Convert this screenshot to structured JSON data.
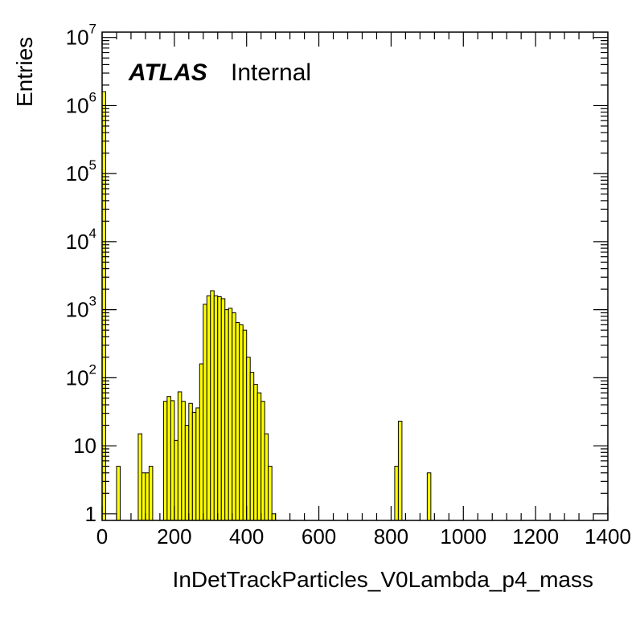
{
  "chart_data": {
    "type": "bar",
    "title": "",
    "xlabel": "InDetTrackParticles_V0Lambda_p4_mass",
    "ylabel": "Entries",
    "label_bold": "ATLAS",
    "label_normal": "Internal",
    "xlim": [
      0,
      1400
    ],
    "ylim": [
      0.8,
      12000000
    ],
    "yscale": "log",
    "bin_width": 10,
    "fill_color": "#ffff00",
    "line_color": "#000000",
    "x_ticks": [
      "0",
      "200",
      "400",
      "600",
      "800",
      "1000",
      "1200",
      "1400"
    ],
    "y_ticks": [
      {
        "base": "1",
        "exp": ""
      },
      {
        "base": "10",
        "exp": ""
      },
      {
        "base": "10",
        "exp": "2"
      },
      {
        "base": "10",
        "exp": "3"
      },
      {
        "base": "10",
        "exp": "4"
      },
      {
        "base": "10",
        "exp": "5"
      },
      {
        "base": "10",
        "exp": "6"
      },
      {
        "base": "10",
        "exp": "7"
      }
    ],
    "bins": [
      {
        "x": 0,
        "y": 1600000
      },
      {
        "x": 40,
        "y": 5
      },
      {
        "x": 100,
        "y": 15
      },
      {
        "x": 110,
        "y": 4
      },
      {
        "x": 120,
        "y": 4
      },
      {
        "x": 130,
        "y": 5
      },
      {
        "x": 170,
        "y": 45
      },
      {
        "x": 180,
        "y": 53
      },
      {
        "x": 190,
        "y": 46
      },
      {
        "x": 200,
        "y": 12
      },
      {
        "x": 210,
        "y": 62
      },
      {
        "x": 220,
        "y": 45
      },
      {
        "x": 230,
        "y": 20
      },
      {
        "x": 240,
        "y": 42
      },
      {
        "x": 250,
        "y": 31
      },
      {
        "x": 260,
        "y": 36
      },
      {
        "x": 270,
        "y": 160
      },
      {
        "x": 280,
        "y": 1200
      },
      {
        "x": 290,
        "y": 1600
      },
      {
        "x": 300,
        "y": 1900
      },
      {
        "x": 310,
        "y": 1600
      },
      {
        "x": 320,
        "y": 1550
      },
      {
        "x": 330,
        "y": 1450
      },
      {
        "x": 340,
        "y": 1000
      },
      {
        "x": 350,
        "y": 1050
      },
      {
        "x": 360,
        "y": 900
      },
      {
        "x": 370,
        "y": 650
      },
      {
        "x": 380,
        "y": 600
      },
      {
        "x": 390,
        "y": 500
      },
      {
        "x": 400,
        "y": 200
      },
      {
        "x": 410,
        "y": 120
      },
      {
        "x": 420,
        "y": 80
      },
      {
        "x": 430,
        "y": 60
      },
      {
        "x": 440,
        "y": 45
      },
      {
        "x": 450,
        "y": 15
      },
      {
        "x": 460,
        "y": 5
      },
      {
        "x": 470,
        "y": 1
      },
      {
        "x": 810,
        "y": 5
      },
      {
        "x": 820,
        "y": 23
      },
      {
        "x": 900,
        "y": 4
      }
    ]
  }
}
